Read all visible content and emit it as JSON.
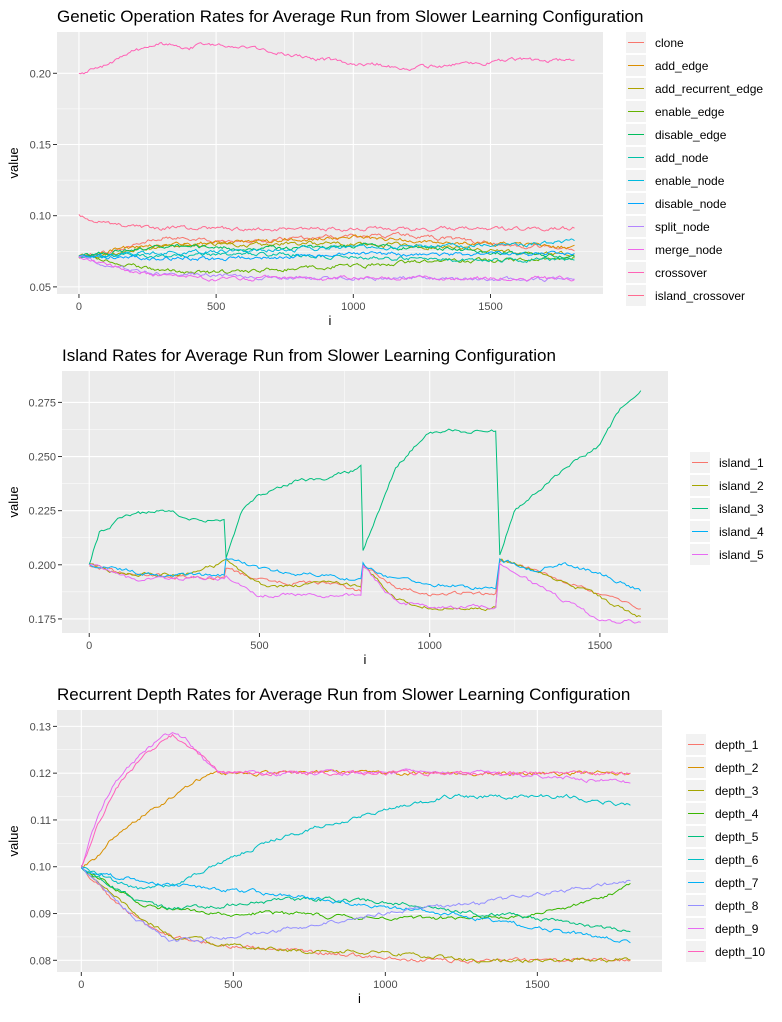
{
  "chart_data": [
    {
      "type": "line",
      "title": "Genetic Operation Rates for Average Run from Slower Learning Configuration",
      "xlabel": "i",
      "ylabel": "value",
      "xlim": [
        -80,
        1910
      ],
      "ylim": [
        0.045,
        0.229
      ],
      "xticks": [
        0,
        500,
        1000,
        1500
      ],
      "yticks": [
        0.05,
        0.1,
        0.15,
        0.2
      ],
      "yticklabels": [
        "0.05",
        "0.10",
        "0.15",
        "0.20"
      ],
      "legend_position": "right",
      "grid": true,
      "series": [
        {
          "name": "clone",
          "color": "#F8766D",
          "x": [
            0,
            150,
            300,
            500,
            700,
            900,
            1000,
            1200,
            1400,
            1600,
            1810
          ],
          "values": [
            0.071,
            0.076,
            0.085,
            0.082,
            0.083,
            0.085,
            0.086,
            0.086,
            0.083,
            0.079,
            0.077
          ]
        },
        {
          "name": "add_edge",
          "color": "#DB8E00",
          "x": [
            0,
            150,
            300,
            500,
            700,
            900,
            1000,
            1200,
            1400,
            1600,
            1810
          ],
          "values": [
            0.071,
            0.077,
            0.079,
            0.081,
            0.082,
            0.084,
            0.085,
            0.083,
            0.081,
            0.079,
            0.078
          ]
        },
        {
          "name": "add_recurrent_edge",
          "color": "#AEA200",
          "x": [
            0,
            150,
            300,
            500,
            700,
            900,
            1000,
            1200,
            1400,
            1600,
            1810
          ],
          "values": [
            0.071,
            0.074,
            0.078,
            0.08,
            0.08,
            0.081,
            0.08,
            0.079,
            0.077,
            0.075,
            0.073
          ]
        },
        {
          "name": "enable_edge",
          "color": "#64B200",
          "x": [
            0,
            150,
            300,
            500,
            700,
            900,
            1000,
            1200,
            1400,
            1600,
            1810
          ],
          "values": [
            0.071,
            0.067,
            0.061,
            0.06,
            0.062,
            0.064,
            0.065,
            0.067,
            0.068,
            0.069,
            0.071
          ]
        },
        {
          "name": "disable_edge",
          "color": "#00BD5C",
          "x": [
            0,
            150,
            300,
            500,
            700,
            900,
            1000,
            1200,
            1400,
            1600,
            1810
          ],
          "values": [
            0.071,
            0.075,
            0.079,
            0.078,
            0.077,
            0.078,
            0.079,
            0.078,
            0.076,
            0.073,
            0.072
          ]
        },
        {
          "name": "add_node",
          "color": "#00C1A7",
          "x": [
            0,
            150,
            300,
            500,
            700,
            900,
            1000,
            1200,
            1400,
            1600,
            1810
          ],
          "values": [
            0.071,
            0.072,
            0.072,
            0.073,
            0.073,
            0.072,
            0.071,
            0.07,
            0.069,
            0.069,
            0.07
          ]
        },
        {
          "name": "enable_node",
          "color": "#00BADE",
          "x": [
            0,
            150,
            300,
            500,
            700,
            900,
            1000,
            1200,
            1400,
            1600,
            1810
          ],
          "values": [
            0.071,
            0.073,
            0.074,
            0.075,
            0.076,
            0.077,
            0.078,
            0.078,
            0.079,
            0.08,
            0.082
          ]
        },
        {
          "name": "disable_node",
          "color": "#00A6FF",
          "x": [
            0,
            150,
            300,
            500,
            700,
            900,
            1000,
            1200,
            1400,
            1600,
            1810
          ],
          "values": [
            0.071,
            0.071,
            0.07,
            0.07,
            0.071,
            0.072,
            0.073,
            0.073,
            0.073,
            0.073,
            0.074
          ]
        },
        {
          "name": "split_node",
          "color": "#B385FF",
          "x": [
            0,
            150,
            300,
            500,
            700,
            900,
            1000,
            1200,
            1400,
            1600,
            1810
          ],
          "values": [
            0.071,
            0.063,
            0.059,
            0.058,
            0.057,
            0.056,
            0.056,
            0.056,
            0.055,
            0.055,
            0.055
          ]
        },
        {
          "name": "merge_node",
          "color": "#EF67EB",
          "x": [
            0,
            150,
            300,
            500,
            700,
            900,
            1000,
            1200,
            1400,
            1600,
            1810
          ],
          "values": [
            0.071,
            0.063,
            0.057,
            0.056,
            0.056,
            0.056,
            0.056,
            0.056,
            0.056,
            0.056,
            0.056
          ]
        },
        {
          "name": "crossover",
          "color": "#FF63B6",
          "x": [
            0,
            100,
            200,
            300,
            400,
            500,
            600,
            800,
            1000,
            1100,
            1200,
            1300,
            1400,
            1500,
            1600,
            1700,
            1810
          ],
          "values": [
            0.199,
            0.206,
            0.215,
            0.221,
            0.218,
            0.221,
            0.218,
            0.212,
            0.207,
            0.206,
            0.203,
            0.205,
            0.206,
            0.208,
            0.209,
            0.209,
            0.209
          ]
        },
        {
          "name": "island_crossover",
          "color": "#FF6C91",
          "x": [
            0,
            100,
            200,
            300,
            500,
            800,
            1000,
            1200,
            1500,
            1810
          ],
          "values": [
            0.1,
            0.095,
            0.092,
            0.091,
            0.091,
            0.091,
            0.091,
            0.091,
            0.091,
            0.091
          ]
        }
      ]
    },
    {
      "type": "line",
      "title": "Island Rates for Average Run from Slower Learning Configuration",
      "xlabel": "i",
      "ylabel": "value",
      "xlim": [
        -80,
        1700
      ],
      "ylim": [
        0.1685,
        0.2895
      ],
      "xticks": [
        0,
        500,
        1000,
        1500
      ],
      "yticks": [
        0.175,
        0.2,
        0.225,
        0.25,
        0.275
      ],
      "yticklabels": [
        "0.175",
        "0.200",
        "0.225",
        "0.250",
        "0.275"
      ],
      "legend_position": "right",
      "grid": true,
      "series": [
        {
          "name": "island_1",
          "color": "#F8766D",
          "x": [
            0,
            100,
            200,
            300,
            398,
            402,
            500,
            600,
            700,
            798,
            802,
            900,
            1000,
            1100,
            1198,
            1202,
            1300,
            1400,
            1500,
            1620
          ],
          "values": [
            0.2,
            0.196,
            0.195,
            0.194,
            0.194,
            0.198,
            0.193,
            0.192,
            0.191,
            0.188,
            0.2,
            0.19,
            0.186,
            0.187,
            0.186,
            0.202,
            0.198,
            0.192,
            0.186,
            0.18
          ]
        },
        {
          "name": "island_2",
          "color": "#A3A500",
          "x": [
            0,
            100,
            200,
            300,
            398,
            402,
            500,
            600,
            700,
            798,
            802,
            900,
            1000,
            1100,
            1198,
            1202,
            1300,
            1400,
            1500,
            1620
          ],
          "values": [
            0.2,
            0.196,
            0.196,
            0.196,
            0.201,
            0.201,
            0.191,
            0.19,
            0.192,
            0.19,
            0.2,
            0.184,
            0.181,
            0.18,
            0.18,
            0.202,
            0.198,
            0.192,
            0.185,
            0.176
          ]
        },
        {
          "name": "island_3",
          "color": "#00BF7D",
          "x": [
            0,
            30,
            100,
            200,
            300,
            398,
            402,
            450,
            500,
            600,
            700,
            798,
            802,
            850,
            900,
            1000,
            1100,
            1198,
            1202,
            1250,
            1300,
            1400,
            1500,
            1560,
            1620
          ],
          "values": [
            0.2,
            0.215,
            0.222,
            0.225,
            0.222,
            0.22,
            0.203,
            0.225,
            0.232,
            0.238,
            0.24,
            0.245,
            0.205,
            0.225,
            0.245,
            0.262,
            0.262,
            0.262,
            0.203,
            0.226,
            0.232,
            0.245,
            0.255,
            0.272,
            0.282
          ]
        },
        {
          "name": "island_4",
          "color": "#00B0F6",
          "x": [
            0,
            100,
            200,
            300,
            398,
            402,
            500,
            600,
            700,
            798,
            802,
            900,
            1000,
            1100,
            1198,
            1202,
            1300,
            1400,
            1500,
            1620
          ],
          "values": [
            0.2,
            0.198,
            0.195,
            0.195,
            0.195,
            0.203,
            0.198,
            0.196,
            0.195,
            0.193,
            0.2,
            0.193,
            0.191,
            0.19,
            0.189,
            0.203,
            0.198,
            0.2,
            0.196,
            0.188
          ]
        },
        {
          "name": "island_5",
          "color": "#E76BF3",
          "x": [
            0,
            100,
            200,
            300,
            398,
            402,
            500,
            600,
            700,
            798,
            802,
            900,
            1000,
            1100,
            1198,
            1202,
            1300,
            1400,
            1500,
            1620
          ],
          "values": [
            0.2,
            0.194,
            0.193,
            0.194,
            0.194,
            0.195,
            0.186,
            0.186,
            0.186,
            0.186,
            0.2,
            0.183,
            0.18,
            0.181,
            0.181,
            0.201,
            0.192,
            0.183,
            0.174,
            0.174
          ]
        }
      ]
    },
    {
      "type": "line",
      "title": "Recurrent Depth Rates for Average Run from Slower Learning Configuration",
      "xlabel": "i",
      "ylabel": "value",
      "xlim": [
        -80,
        1910
      ],
      "ylim": [
        0.0775,
        0.1335
      ],
      "xticks": [
        0,
        500,
        1000,
        1500
      ],
      "yticks": [
        0.08,
        0.09,
        0.1,
        0.11,
        0.12,
        0.13
      ],
      "yticklabels": [
        "0.08",
        "0.09",
        "0.10",
        "0.11",
        "0.12",
        "0.13"
      ],
      "legend_position": "right",
      "grid": true,
      "series": [
        {
          "name": "depth_1",
          "color": "#F8766D",
          "x": [
            0,
            100,
            200,
            300,
            400,
            500,
            700,
            900,
            1100,
            1300,
            1500,
            1700,
            1810
          ],
          "values": [
            0.1,
            0.093,
            0.088,
            0.085,
            0.084,
            0.083,
            0.082,
            0.081,
            0.08,
            0.08,
            0.08,
            0.08,
            0.08
          ]
        },
        {
          "name": "depth_2",
          "color": "#D89000",
          "x": [
            0,
            50,
            100,
            200,
            300,
            400,
            450,
            500,
            700,
            1000,
            1200,
            1500,
            1810
          ],
          "values": [
            0.1,
            0.102,
            0.106,
            0.111,
            0.115,
            0.119,
            0.12,
            0.12,
            0.12,
            0.12,
            0.12,
            0.12,
            0.12
          ]
        },
        {
          "name": "depth_3",
          "color": "#A3A500",
          "x": [
            0,
            100,
            200,
            300,
            400,
            500,
            700,
            900,
            1100,
            1300,
            1500,
            1700,
            1810
          ],
          "values": [
            0.1,
            0.094,
            0.089,
            0.085,
            0.084,
            0.083,
            0.082,
            0.082,
            0.081,
            0.08,
            0.08,
            0.08,
            0.08
          ]
        },
        {
          "name": "depth_4",
          "color": "#39B600",
          "x": [
            0,
            100,
            200,
            300,
            500,
            700,
            900,
            1100,
            1300,
            1500,
            1700,
            1810
          ],
          "values": [
            0.1,
            0.096,
            0.092,
            0.091,
            0.09,
            0.09,
            0.089,
            0.089,
            0.089,
            0.09,
            0.093,
            0.096
          ]
        },
        {
          "name": "depth_5",
          "color": "#00BF7D",
          "x": [
            0,
            100,
            200,
            300,
            500,
            700,
            900,
            1100,
            1300,
            1500,
            1700,
            1810
          ],
          "values": [
            0.1,
            0.096,
            0.092,
            0.091,
            0.092,
            0.093,
            0.093,
            0.092,
            0.09,
            0.089,
            0.087,
            0.086
          ]
        },
        {
          "name": "depth_6",
          "color": "#00BFC4",
          "x": [
            0,
            100,
            200,
            300,
            400,
            500,
            600,
            800,
            1000,
            1200,
            1400,
            1600,
            1810
          ],
          "values": [
            0.1,
            0.097,
            0.095,
            0.096,
            0.099,
            0.102,
            0.105,
            0.109,
            0.112,
            0.115,
            0.115,
            0.115,
            0.113
          ]
        },
        {
          "name": "depth_7",
          "color": "#00B0F6",
          "x": [
            0,
            100,
            200,
            300,
            500,
            700,
            900,
            1100,
            1300,
            1500,
            1700,
            1810
          ],
          "values": [
            0.1,
            0.098,
            0.097,
            0.096,
            0.095,
            0.094,
            0.092,
            0.091,
            0.089,
            0.087,
            0.085,
            0.084
          ]
        },
        {
          "name": "depth_8",
          "color": "#9590FF",
          "x": [
            0,
            100,
            200,
            300,
            500,
            700,
            900,
            1100,
            1300,
            1500,
            1700,
            1810
          ],
          "values": [
            0.1,
            0.094,
            0.088,
            0.084,
            0.085,
            0.087,
            0.089,
            0.091,
            0.092,
            0.094,
            0.096,
            0.097
          ]
        },
        {
          "name": "depth_9",
          "color": "#E76BF3",
          "x": [
            0,
            50,
            100,
            150,
            200,
            250,
            300,
            350,
            400,
            450,
            500,
            800,
            1100,
            1400,
            1600,
            1810
          ],
          "values": [
            0.1,
            0.11,
            0.117,
            0.121,
            0.124,
            0.127,
            0.129,
            0.127,
            0.123,
            0.12,
            0.12,
            0.12,
            0.12,
            0.12,
            0.119,
            0.118
          ]
        },
        {
          "name": "depth_10",
          "color": "#FF62BC",
          "x": [
            0,
            50,
            100,
            150,
            200,
            250,
            300,
            350,
            400,
            450,
            500,
            800,
            1100,
            1400,
            1600,
            1810
          ],
          "values": [
            0.1,
            0.108,
            0.115,
            0.12,
            0.123,
            0.126,
            0.128,
            0.126,
            0.123,
            0.12,
            0.12,
            0.12,
            0.12,
            0.12,
            0.12,
            0.12
          ]
        }
      ]
    }
  ]
}
